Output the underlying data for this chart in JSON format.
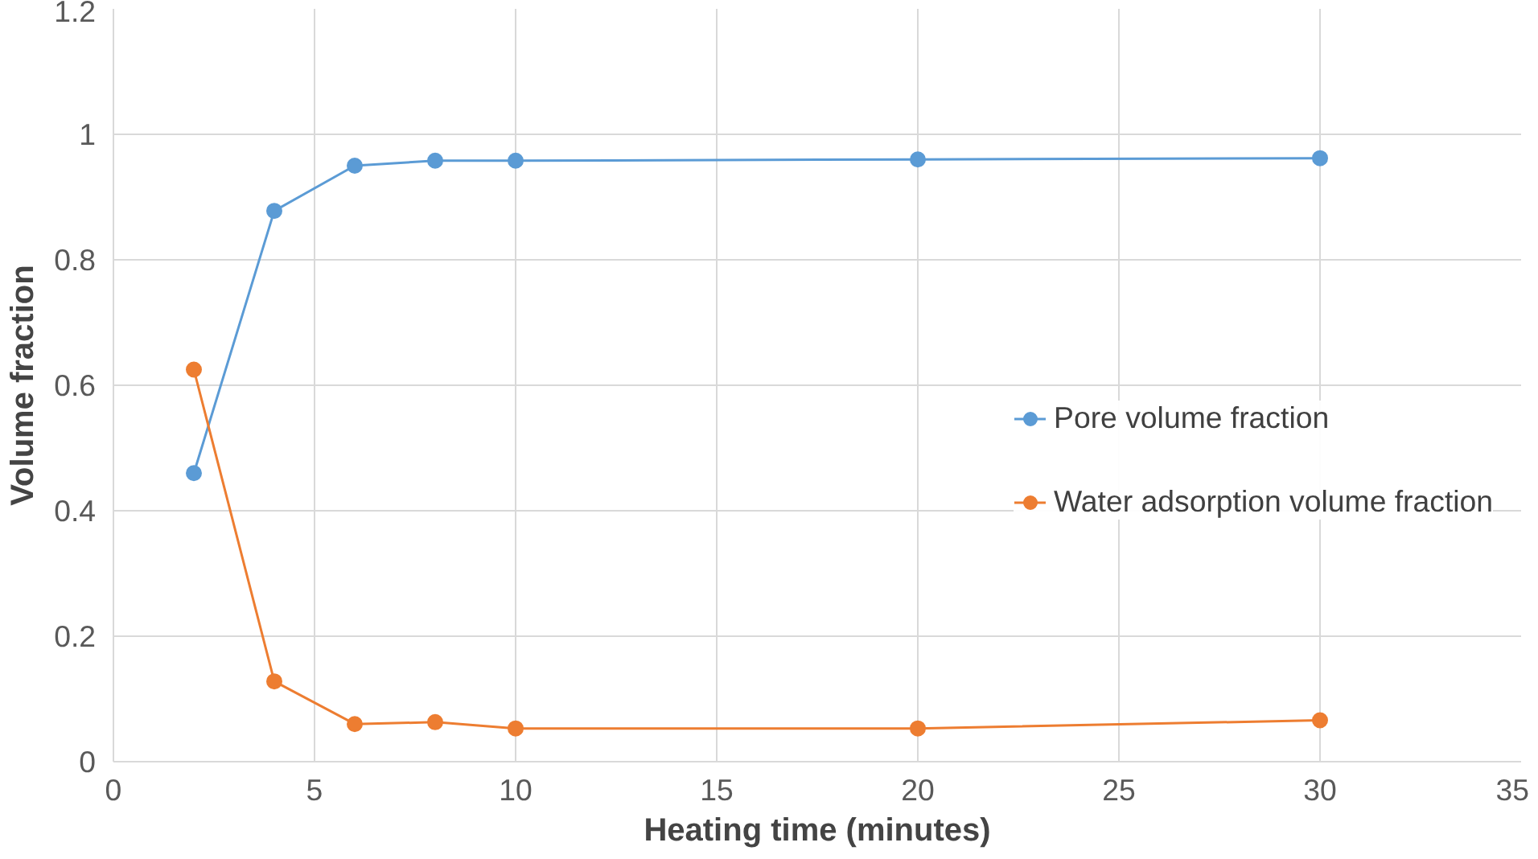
{
  "chart_data": {
    "type": "line",
    "xlabel": "Heating time (minutes)",
    "ylabel": "Volume fraction",
    "x": [
      2,
      4,
      6,
      8,
      10,
      20,
      30
    ],
    "series": [
      {
        "name": "Pore volume fraction",
        "color": "#5b9bd5",
        "values": [
          0.46,
          0.878,
          0.95,
          0.958,
          0.958,
          0.96,
          0.962
        ]
      },
      {
        "name": "Water adsorption volume fraction",
        "color": "#ed7d31",
        "values": [
          0.625,
          0.128,
          0.06,
          0.063,
          0.053,
          0.053,
          0.066
        ]
      }
    ],
    "xlim": [
      0,
      35
    ],
    "xticks": [
      0,
      5,
      10,
      15,
      20,
      25,
      30,
      35
    ],
    "ylim": [
      0,
      1.2
    ],
    "yticks": [
      0,
      {
        "value": 0.2,
        "label": "0.2"
      },
      {
        "value": 0.4,
        "label": "0.4"
      },
      {
        "value": 0.6,
        "label": "0.6"
      },
      {
        "value": 0.8,
        "label": "0.8"
      },
      1,
      {
        "value": 1.2,
        "label": "1.2"
      }
    ],
    "grid": true,
    "legend": "right",
    "marker": "circle",
    "line_style": "solid"
  }
}
